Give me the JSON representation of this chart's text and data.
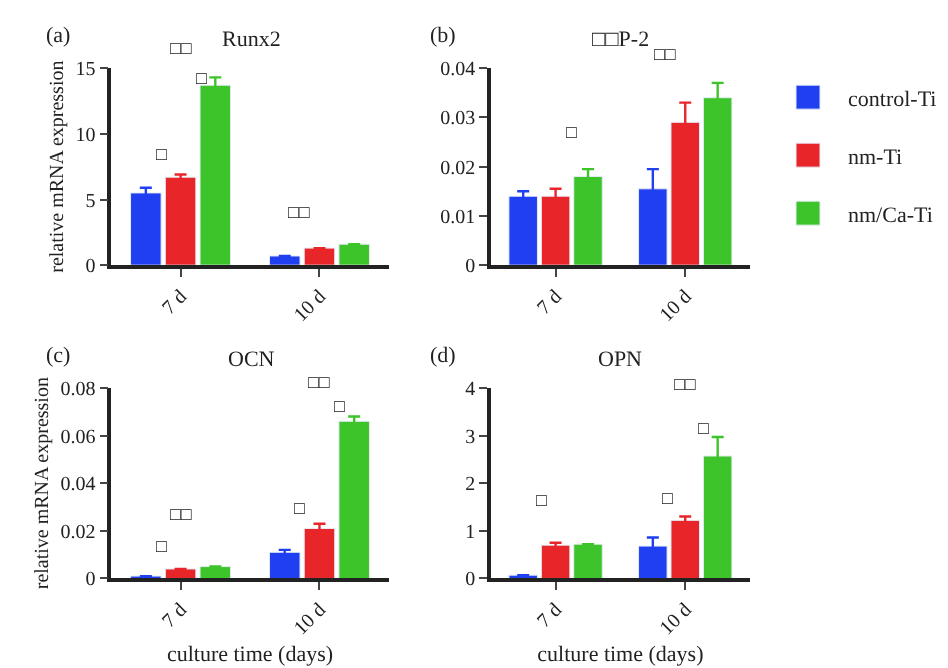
{
  "chart_data": [
    {
      "type": "bar",
      "title": "Runx2",
      "ylabel": "relative mRNA expression",
      "categories": [
        "7 d",
        "10 d"
      ],
      "ylim": [
        0,
        15
      ],
      "yticks": [
        0,
        5,
        10,
        15
      ],
      "legend": "right",
      "series": [
        {
          "name": "control-Ti",
          "color": "#1f3ff0",
          "values": [
            5.5,
            0.7
          ],
          "errors": [
            0.4,
            null
          ]
        },
        {
          "name": "nm-Ti",
          "color": "#e8262a",
          "values": [
            6.7,
            1.3
          ],
          "errors": [
            0.2,
            null
          ]
        },
        {
          "name": "nm/Ca-Ti",
          "color": "#3dc42a",
          "values": [
            13.7,
            1.6
          ],
          "errors": [
            0.6,
            null
          ]
        }
      ],
      "annotations": [
        "(a)",
        "□□",
        "□",
        "□",
        "□□"
      ]
    },
    {
      "type": "bar",
      "title": "□□P-2",
      "categories": [
        "7 d",
        "10 d"
      ],
      "ylim": [
        0,
        0.04
      ],
      "yticks": [
        0,
        0.01,
        0.02,
        0.03,
        0.04
      ],
      "series": [
        {
          "color": "#1f3ff0",
          "values": [
            0.014,
            0.0155
          ],
          "errors": [
            0.001,
            0.004
          ]
        },
        {
          "color": "#e8262a",
          "values": [
            0.014,
            0.029
          ],
          "errors": [
            0.0015,
            0.004
          ]
        },
        {
          "color": "#3dc42a",
          "values": [
            0.018,
            0.034
          ],
          "errors": [
            0.0015,
            0.003
          ]
        }
      ],
      "annotations": [
        "(b)",
        "□",
        "□□"
      ]
    },
    {
      "type": "bar",
      "title": "OCN",
      "ylabel": "relative mRNA expression",
      "xlabel": "culture time (days)",
      "categories": [
        "7 d",
        "10 d"
      ],
      "ylim": [
        0,
        0.08
      ],
      "yticks": [
        0,
        0.02,
        0.04,
        0.06,
        0.08
      ],
      "series": [
        {
          "color": "#1f3ff0",
          "values": [
            0.001,
            0.011
          ],
          "errors": [
            null,
            0.001
          ]
        },
        {
          "color": "#e8262a",
          "values": [
            0.004,
            0.021
          ],
          "errors": [
            null,
            0.002
          ]
        },
        {
          "color": "#3dc42a",
          "values": [
            0.005,
            0.066
          ],
          "errors": [
            null,
            0.002
          ]
        }
      ],
      "annotations": [
        "(c)",
        "□□",
        "□",
        "□□",
        "□",
        "□"
      ]
    },
    {
      "type": "bar",
      "title": "OPN",
      "xlabel": "culture time (days)",
      "categories": [
        "7 d",
        "10 d"
      ],
      "ylim": [
        0,
        4
      ],
      "yticks": [
        0,
        1,
        2,
        3,
        4
      ],
      "series": [
        {
          "color": "#1f3ff0",
          "values": [
            0.07,
            0.68
          ],
          "errors": [
            null,
            0.18
          ]
        },
        {
          "color": "#e8262a",
          "values": [
            0.7,
            1.22
          ],
          "errors": [
            0.05,
            0.08
          ]
        },
        {
          "color": "#3dc42a",
          "values": [
            0.72,
            2.57
          ],
          "errors": [
            null,
            0.4
          ]
        }
      ],
      "annotations": [
        "(d)",
        "□",
        "□□",
        "□",
        "□"
      ]
    }
  ]
}
